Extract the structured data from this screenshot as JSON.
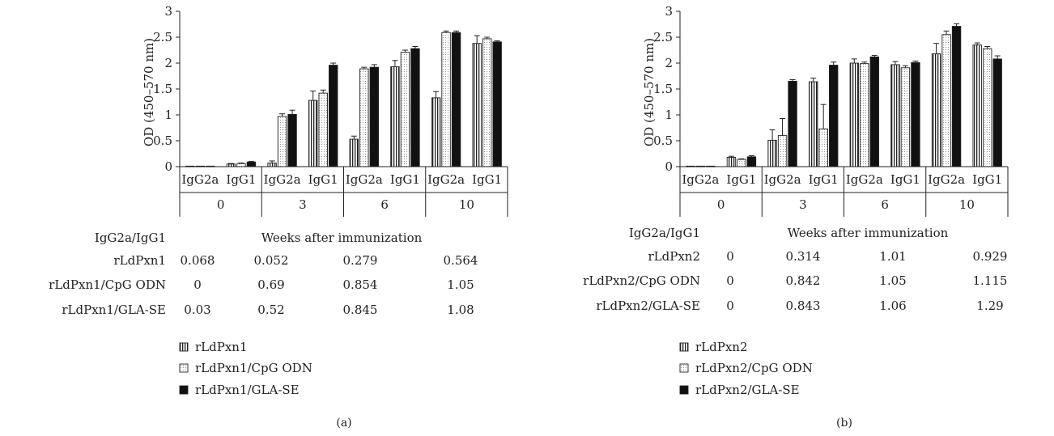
{
  "chart_data": [
    {
      "type": "bar",
      "panel_label": "(a)",
      "ylabel": "OD (450–570 nm)",
      "ylim": [
        0,
        3
      ],
      "yticks": [
        "0",
        "0.5",
        "1",
        "1.5",
        "2",
        "2.5",
        "3"
      ],
      "subcategories": [
        "IgG2a",
        "IgG1"
      ],
      "groups": [
        "0",
        "3",
        "6",
        "10"
      ],
      "series": [
        {
          "name": "rLdPxn1",
          "pattern": "vertical-stripes",
          "values": [
            [
              0.01,
              0.05
            ],
            [
              0.07,
              1.28
            ],
            [
              0.53,
              1.93
            ],
            [
              1.33,
              2.38
            ]
          ],
          "errors": [
            [
              0.005,
              0.01
            ],
            [
              0.04,
              0.18
            ],
            [
              0.06,
              0.12
            ],
            [
              0.12,
              0.15
            ]
          ]
        },
        {
          "name": "rLdPxn1/CpG ODN",
          "pattern": "dotted",
          "values": [
            [
              0.01,
              0.06
            ],
            [
              0.97,
              1.42
            ],
            [
              1.89,
              2.21
            ],
            [
              2.59,
              2.47
            ]
          ],
          "errors": [
            [
              0.005,
              0.01
            ],
            [
              0.05,
              0.06
            ],
            [
              0.03,
              0.04
            ],
            [
              0.03,
              0.03
            ]
          ]
        },
        {
          "name": "rLdPxn1/GLA-SE",
          "pattern": "solid",
          "values": [
            [
              0.01,
              0.09
            ],
            [
              1.01,
              1.96
            ],
            [
              1.92,
              2.28
            ],
            [
              2.59,
              2.41
            ]
          ],
          "errors": [
            [
              0.005,
              0.01
            ],
            [
              0.08,
              0.04
            ],
            [
              0.05,
              0.04
            ],
            [
              0.03,
              0.02
            ]
          ]
        }
      ],
      "table": {
        "header_left": "IgG2a/IgG1",
        "header_center": "Weeks after immunization",
        "rows": [
          {
            "label": "rLdPxn1",
            "values": [
              "0.068",
              "0.052",
              "0.279",
              "0.564"
            ]
          },
          {
            "label": "rLdPxn1/CpG ODN",
            "values": [
              "0",
              "0.69",
              "0.854",
              "1.05"
            ]
          },
          {
            "label": "rLdPxn1/GLA-SE",
            "values": [
              "0.03",
              "0.52",
              "0.845",
              "1.08"
            ]
          }
        ]
      }
    },
    {
      "type": "bar",
      "panel_label": "(b)",
      "ylabel": "OD (450–570 nm)",
      "ylim": [
        0,
        3
      ],
      "yticks": [
        "0",
        "0.5",
        "1",
        "1.5",
        "2",
        "2.5",
        "3"
      ],
      "subcategories": [
        "IgG2a",
        "IgG1"
      ],
      "groups": [
        "0",
        "3",
        "6",
        "10"
      ],
      "series": [
        {
          "name": "rLdPxn2",
          "pattern": "vertical-stripes",
          "values": [
            [
              0.01,
              0.18
            ],
            [
              0.51,
              1.64
            ],
            [
              2.0,
              1.97
            ],
            [
              2.18,
              2.35
            ]
          ],
          "errors": [
            [
              0.005,
              0.02
            ],
            [
              0.2,
              0.07
            ],
            [
              0.08,
              0.06
            ],
            [
              0.2,
              0.04
            ]
          ]
        },
        {
          "name": "rLdPxn2/CpG ODN",
          "pattern": "dotted",
          "values": [
            [
              0.01,
              0.14
            ],
            [
              0.6,
              0.73
            ],
            [
              1.99,
              1.91
            ],
            [
              2.55,
              2.28
            ]
          ],
          "errors": [
            [
              0.005,
              0.01
            ],
            [
              0.33,
              0.47
            ],
            [
              0.03,
              0.04
            ],
            [
              0.07,
              0.04
            ]
          ]
        },
        {
          "name": "rLdPxn2/GLA-SE",
          "pattern": "solid",
          "values": [
            [
              0.01,
              0.19
            ],
            [
              1.65,
              1.96
            ],
            [
              2.12,
              2.01
            ],
            [
              2.71,
              2.08
            ]
          ],
          "errors": [
            [
              0.005,
              0.02
            ],
            [
              0.03,
              0.06
            ],
            [
              0.03,
              0.03
            ],
            [
              0.05,
              0.06
            ]
          ]
        }
      ],
      "table": {
        "header_left": "IgG2a/IgG1",
        "header_center": "Weeks after immunization",
        "rows": [
          {
            "label": "rLdPxn2",
            "values": [
              "0",
              "0.314",
              "1.01",
              "0.929"
            ]
          },
          {
            "label": "rLdPxn2/CpG ODN",
            "values": [
              "0",
              "0.842",
              "1.05",
              "1.115"
            ]
          },
          {
            "label": "rLdPxn2/GLA-SE",
            "values": [
              "0",
              "0.843",
              "1.06",
              "1.29"
            ]
          }
        ]
      }
    }
  ]
}
